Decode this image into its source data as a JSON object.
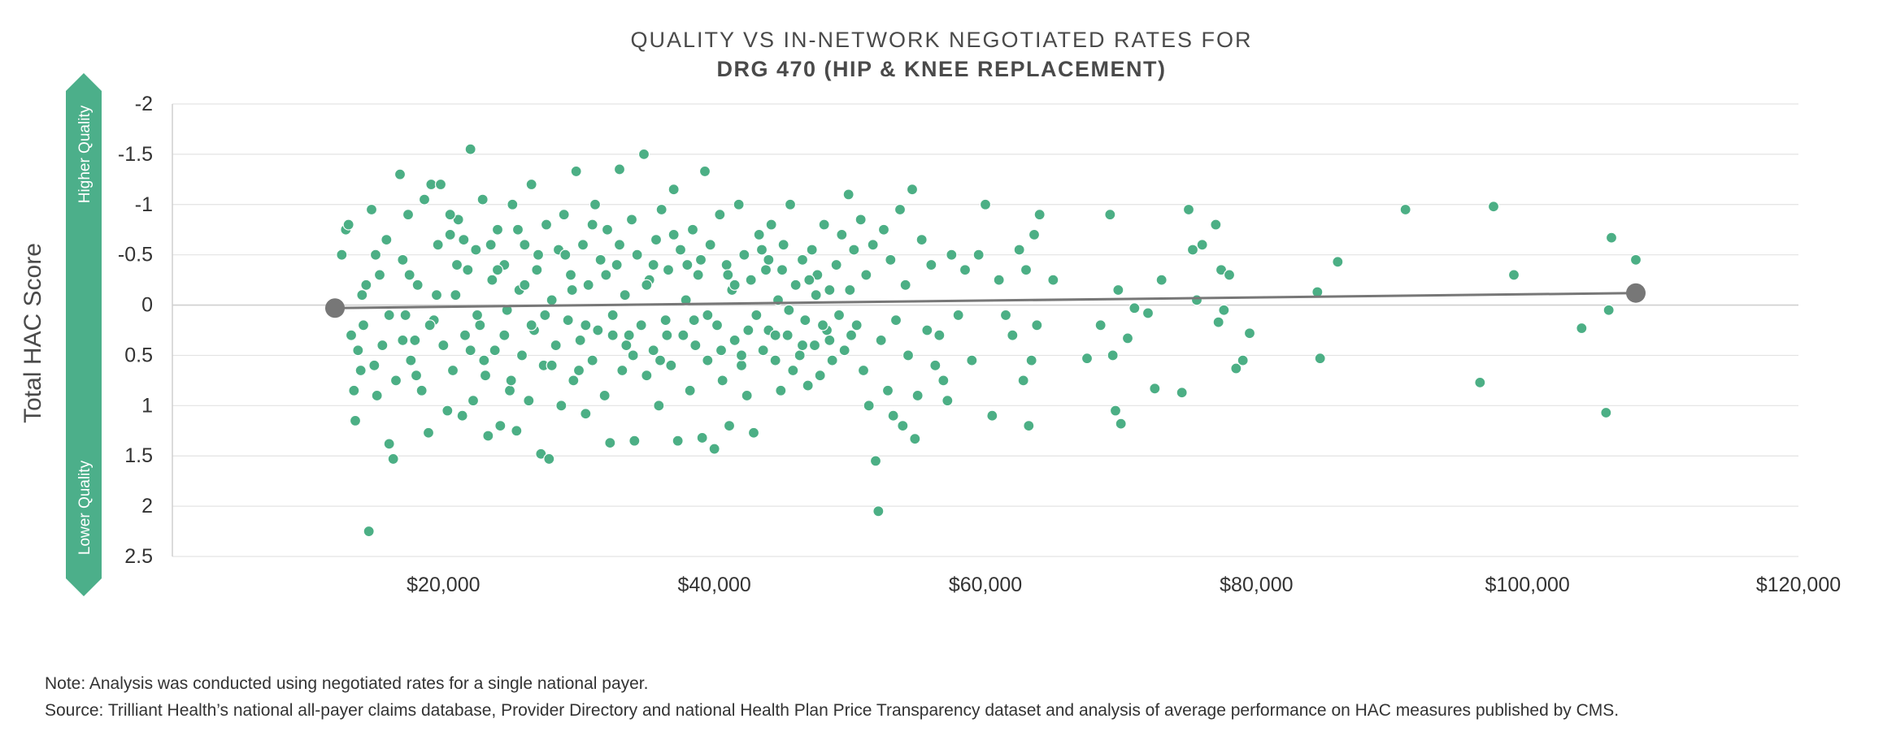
{
  "title": "QUALITY VS IN-NETWORK NEGOTIATED RATES FOR",
  "subtitle": "DRG 470 (HIP & KNEE REPLACEMENT)",
  "note": "Note: Analysis was conducted using negotiated rates for a single national payer.",
  "source": "Source: Trilliant Health’s national all-payer claims database, Provider Directory and national Health Plan Price Transparency dataset and analysis of average performance on HAC measures published by CMS.",
  "colors": {
    "points": "#4caf85",
    "trendline": "#777777",
    "grid": "#e3e3e3",
    "badge": "#4caf8a"
  },
  "chart_data": {
    "type": "scatter",
    "ylabel": "Total HAC Score",
    "y_axis_inverted": true,
    "y_top_label": "Higher Quality",
    "y_bottom_label": "Lower Quality",
    "xlim": [
      0,
      120000
    ],
    "ylim": [
      -2,
      2.5
    ],
    "x_ticks": [
      20000,
      40000,
      60000,
      80000,
      100000,
      120000
    ],
    "x_tick_labels": [
      "$20,000",
      "$40,000",
      "$60,000",
      "$80,000",
      "$100,000",
      "$120,000"
    ],
    "y_ticks": [
      -2,
      -1.5,
      -1,
      -0.5,
      0,
      0.5,
      1,
      1.5,
      2,
      2.5
    ],
    "y_tick_labels": [
      "-2",
      "-1.5",
      "-1",
      "-0.5",
      "0",
      "0.5",
      "1",
      "1.5",
      "2",
      "2.5"
    ],
    "grid": true,
    "trendline": {
      "x": [
        12000,
        108000
      ],
      "y": [
        0.03,
        -0.12
      ]
    },
    "points": [
      [
        12500,
        -0.5
      ],
      [
        12800,
        -0.75
      ],
      [
        13000,
        -0.8
      ],
      [
        13200,
        0.3
      ],
      [
        13400,
        0.85
      ],
      [
        13500,
        1.15
      ],
      [
        13700,
        0.45
      ],
      [
        13900,
        0.65
      ],
      [
        14100,
        0.2
      ],
      [
        14300,
        -0.2
      ],
      [
        14500,
        2.25
      ],
      [
        14700,
        -0.95
      ],
      [
        14900,
        0.6
      ],
      [
        15100,
        0.9
      ],
      [
        15300,
        -0.3
      ],
      [
        15500,
        0.4
      ],
      [
        15800,
        -0.65
      ],
      [
        16000,
        1.38
      ],
      [
        16300,
        1.53
      ],
      [
        16500,
        0.75
      ],
      [
        16800,
        -1.3
      ],
      [
        17000,
        -0.45
      ],
      [
        17200,
        0.1
      ],
      [
        17400,
        -0.9
      ],
      [
        17600,
        0.55
      ],
      [
        17900,
        0.35
      ],
      [
        18100,
        -0.2
      ],
      [
        18400,
        0.85
      ],
      [
        18600,
        -1.05
      ],
      [
        18900,
        1.27
      ],
      [
        19100,
        -1.2
      ],
      [
        19300,
        0.15
      ],
      [
        19600,
        -0.6
      ],
      [
        19800,
        -1.2
      ],
      [
        20000,
        0.4
      ],
      [
        20300,
        1.05
      ],
      [
        20500,
        -0.7
      ],
      [
        20700,
        0.65
      ],
      [
        20900,
        -0.1
      ],
      [
        21100,
        -0.85
      ],
      [
        21400,
        1.1
      ],
      [
        21600,
        0.3
      ],
      [
        21800,
        -0.35
      ],
      [
        22000,
        -1.55
      ],
      [
        22200,
        0.95
      ],
      [
        22400,
        -0.55
      ],
      [
        22700,
        0.2
      ],
      [
        22900,
        -1.05
      ],
      [
        23100,
        0.7
      ],
      [
        23300,
        1.3
      ],
      [
        23600,
        -0.25
      ],
      [
        23800,
        0.45
      ],
      [
        24000,
        -0.75
      ],
      [
        24200,
        1.2
      ],
      [
        24500,
        -0.4
      ],
      [
        24700,
        0.05
      ],
      [
        24900,
        0.85
      ],
      [
        25100,
        -1.0
      ],
      [
        25400,
        1.25
      ],
      [
        25600,
        -0.15
      ],
      [
        25800,
        0.5
      ],
      [
        26000,
        -0.6
      ],
      [
        26300,
        0.95
      ],
      [
        26500,
        -1.2
      ],
      [
        26700,
        0.25
      ],
      [
        26900,
        -0.35
      ],
      [
        27200,
        1.48
      ],
      [
        27400,
        0.6
      ],
      [
        27600,
        -0.8
      ],
      [
        27800,
        1.53
      ],
      [
        28000,
        -0.05
      ],
      [
        28300,
        0.4
      ],
      [
        28500,
        -0.55
      ],
      [
        28700,
        1.0
      ],
      [
        28900,
        -0.9
      ],
      [
        29200,
        0.15
      ],
      [
        29400,
        -0.3
      ],
      [
        29600,
        0.75
      ],
      [
        29800,
        -1.33
      ],
      [
        30100,
        0.35
      ],
      [
        30300,
        -0.6
      ],
      [
        30500,
        1.08
      ],
      [
        30700,
        -0.2
      ],
      [
        31000,
        0.55
      ],
      [
        31200,
        -1.0
      ],
      [
        31400,
        0.25
      ],
      [
        31600,
        -0.45
      ],
      [
        31900,
        0.9
      ],
      [
        32100,
        -0.75
      ],
      [
        32300,
        1.37
      ],
      [
        32500,
        0.1
      ],
      [
        32800,
        -0.4
      ],
      [
        33000,
        -1.35
      ],
      [
        33200,
        0.65
      ],
      [
        33400,
        -0.1
      ],
      [
        33700,
        0.3
      ],
      [
        33900,
        -0.85
      ],
      [
        34100,
        1.35
      ],
      [
        34300,
        -0.5
      ],
      [
        34600,
        0.2
      ],
      [
        34800,
        -1.5
      ],
      [
        35000,
        0.7
      ],
      [
        35200,
        -0.25
      ],
      [
        35500,
        0.45
      ],
      [
        35700,
        -0.65
      ],
      [
        35900,
        1.0
      ],
      [
        36100,
        -0.95
      ],
      [
        36400,
        0.15
      ],
      [
        36600,
        -0.35
      ],
      [
        36800,
        0.6
      ],
      [
        37000,
        -1.15
      ],
      [
        37300,
        1.35
      ],
      [
        37500,
        -0.55
      ],
      [
        37700,
        0.3
      ],
      [
        37900,
        -0.05
      ],
      [
        38200,
        0.85
      ],
      [
        38400,
        -0.75
      ],
      [
        38600,
        0.4
      ],
      [
        38800,
        -0.3
      ],
      [
        39100,
        1.32
      ],
      [
        39300,
        -1.33
      ],
      [
        39500,
        0.55
      ],
      [
        39700,
        -0.6
      ],
      [
        40000,
        1.43
      ],
      [
        40200,
        0.2
      ],
      [
        40400,
        -0.9
      ],
      [
        40600,
        0.75
      ],
      [
        40900,
        -0.4
      ],
      [
        41100,
        1.2
      ],
      [
        41300,
        -0.15
      ],
      [
        41500,
        0.35
      ],
      [
        41800,
        -1.0
      ],
      [
        42000,
        0.6
      ],
      [
        42200,
        -0.5
      ],
      [
        42400,
        0.9
      ],
      [
        42700,
        -0.25
      ],
      [
        42900,
        1.27
      ],
      [
        43100,
        0.1
      ],
      [
        43300,
        -0.7
      ],
      [
        43600,
        0.45
      ],
      [
        43800,
        -0.35
      ],
      [
        44000,
        0.25
      ],
      [
        44200,
        -0.8
      ],
      [
        44500,
        0.55
      ],
      [
        44700,
        -0.05
      ],
      [
        44900,
        0.85
      ],
      [
        45100,
        -0.6
      ],
      [
        45400,
        0.3
      ],
      [
        45600,
        -1.0
      ],
      [
        45800,
        0.65
      ],
      [
        46000,
        -0.2
      ],
      [
        46300,
        0.5
      ],
      [
        46500,
        -0.45
      ],
      [
        46700,
        0.15
      ],
      [
        46900,
        0.8
      ],
      [
        47200,
        -0.55
      ],
      [
        47400,
        0.4
      ],
      [
        47600,
        -0.3
      ],
      [
        47800,
        0.7
      ],
      [
        48100,
        -0.8
      ],
      [
        48300,
        0.25
      ],
      [
        48500,
        -0.15
      ],
      [
        48700,
        0.55
      ],
      [
        49000,
        -0.4
      ],
      [
        49200,
        0.1
      ],
      [
        49400,
        -0.7
      ],
      [
        49600,
        0.45
      ],
      [
        49900,
        -1.1
      ],
      [
        50100,
        0.3
      ],
      [
        50300,
        -0.55
      ],
      [
        50500,
        0.2
      ],
      [
        50800,
        -0.85
      ],
      [
        51000,
        0.65
      ],
      [
        51200,
        -0.3
      ],
      [
        51400,
        1.0
      ],
      [
        51700,
        -0.6
      ],
      [
        51900,
        1.55
      ],
      [
        52100,
        2.05
      ],
      [
        52300,
        0.35
      ],
      [
        52500,
        -0.75
      ],
      [
        52800,
        0.85
      ],
      [
        53000,
        -0.45
      ],
      [
        53200,
        1.1
      ],
      [
        53400,
        0.15
      ],
      [
        53700,
        -0.95
      ],
      [
        53900,
        1.2
      ],
      [
        54100,
        -0.2
      ],
      [
        54300,
        0.5
      ],
      [
        54600,
        -1.15
      ],
      [
        54800,
        1.33
      ],
      [
        55000,
        0.9
      ],
      [
        55300,
        -0.65
      ],
      [
        55700,
        0.25
      ],
      [
        56000,
        -0.4
      ],
      [
        56300,
        0.6
      ],
      [
        56600,
        0.3
      ],
      [
        56900,
        0.75
      ],
      [
        57200,
        0.95
      ],
      [
        57500,
        -0.5
      ],
      [
        58000,
        0.1
      ],
      [
        58500,
        -0.35
      ],
      [
        59000,
        0.55
      ],
      [
        59500,
        -0.5
      ],
      [
        60000,
        -1.0
      ],
      [
        60500,
        1.1
      ],
      [
        61000,
        -0.25
      ],
      [
        61500,
        0.1
      ],
      [
        62000,
        0.3
      ],
      [
        62500,
        -0.55
      ],
      [
        62800,
        0.75
      ],
      [
        63000,
        -0.35
      ],
      [
        63200,
        1.2
      ],
      [
        63400,
        0.55
      ],
      [
        63600,
        -0.7
      ],
      [
        63800,
        0.2
      ],
      [
        64000,
        -0.9
      ],
      [
        65000,
        -0.25
      ],
      [
        67500,
        0.53
      ],
      [
        68500,
        0.2
      ],
      [
        69200,
        -0.9
      ],
      [
        69400,
        0.5
      ],
      [
        69600,
        1.05
      ],
      [
        69800,
        -0.15
      ],
      [
        70000,
        1.18
      ],
      [
        70500,
        0.33
      ],
      [
        71000,
        0.03
      ],
      [
        72000,
        0.08
      ],
      [
        72500,
        0.83
      ],
      [
        73000,
        -0.25
      ],
      [
        74500,
        0.87
      ],
      [
        75000,
        -0.95
      ],
      [
        75300,
        -0.55
      ],
      [
        75600,
        -0.05
      ],
      [
        76000,
        -0.6
      ],
      [
        77000,
        -0.8
      ],
      [
        77200,
        0.17
      ],
      [
        77400,
        -0.35
      ],
      [
        77600,
        0.05
      ],
      [
        78000,
        -0.3
      ],
      [
        78500,
        0.63
      ],
      [
        79000,
        0.55
      ],
      [
        79500,
        0.28
      ],
      [
        84500,
        -0.13
      ],
      [
        84700,
        0.53
      ],
      [
        86000,
        -0.43
      ],
      [
        91000,
        -0.95
      ],
      [
        96500,
        0.77
      ],
      [
        97500,
        -0.98
      ],
      [
        99000,
        -0.3
      ],
      [
        104000,
        0.23
      ],
      [
        105800,
        1.07
      ],
      [
        106000,
        0.05
      ],
      [
        106200,
        -0.67
      ],
      [
        108000,
        -0.45
      ],
      [
        15000,
        -0.5
      ],
      [
        17500,
        -0.3
      ],
      [
        19000,
        0.2
      ],
      [
        21000,
        -0.4
      ],
      [
        22500,
        0.1
      ],
      [
        23500,
        -0.6
      ],
      [
        24500,
        0.3
      ],
      [
        26000,
        -0.2
      ],
      [
        27500,
        0.1
      ],
      [
        29000,
        -0.5
      ],
      [
        30500,
        0.2
      ],
      [
        32000,
        -0.3
      ],
      [
        33500,
        0.4
      ],
      [
        35000,
        -0.2
      ],
      [
        36500,
        0.3
      ],
      [
        38000,
        -0.4
      ],
      [
        39500,
        0.1
      ],
      [
        41000,
        -0.3
      ],
      [
        42500,
        0.25
      ],
      [
        44000,
        -0.45
      ],
      [
        45500,
        0.05
      ],
      [
        47000,
        -0.25
      ],
      [
        48500,
        0.35
      ],
      [
        50000,
        -0.15
      ],
      [
        18000,
        0.7
      ],
      [
        20500,
        -0.9
      ],
      [
        23000,
        0.55
      ],
      [
        25500,
        -0.75
      ],
      [
        28000,
        0.6
      ],
      [
        31000,
        -0.8
      ],
      [
        34000,
        0.5
      ],
      [
        37000,
        -0.7
      ],
      [
        40500,
        0.45
      ],
      [
        43500,
        -0.55
      ],
      [
        46500,
        0.4
      ],
      [
        16000,
        0.1
      ],
      [
        19500,
        -0.1
      ],
      [
        22000,
        0.45
      ],
      [
        24000,
        -0.35
      ],
      [
        26500,
        0.2
      ],
      [
        29500,
        -0.15
      ],
      [
        32500,
        0.3
      ],
      [
        35500,
        -0.4
      ],
      [
        38500,
        0.15
      ],
      [
        41500,
        -0.2
      ],
      [
        44500,
        0.3
      ],
      [
        47500,
        -0.1
      ],
      [
        14000,
        -0.1
      ],
      [
        17000,
        0.35
      ],
      [
        21500,
        -0.65
      ],
      [
        25000,
        0.75
      ],
      [
        27000,
        -0.5
      ],
      [
        30000,
        0.65
      ],
      [
        33000,
        -0.6
      ],
      [
        36000,
        0.55
      ],
      [
        39000,
        -0.45
      ],
      [
        42000,
        0.5
      ],
      [
        45000,
        -0.35
      ],
      [
        48000,
        0.2
      ]
    ]
  }
}
